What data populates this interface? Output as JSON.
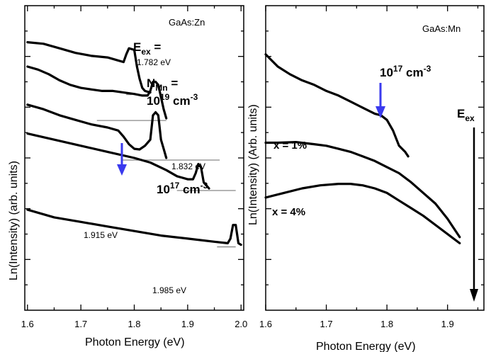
{
  "chart_data": [
    {
      "type": "line",
      "panel": "left",
      "title": "GaAs:Zn",
      "xlabel": "Photon Energy (eV)",
      "ylabel": "Ln(Intensity) (arb. units)",
      "xlim": [
        1.595,
        2.005
      ],
      "x_ticks": [
        "1.6",
        "1.7",
        "1.8",
        "1.9",
        "2.0"
      ],
      "grid": false,
      "annotations": {
        "eex_label": "E",
        "eex_sub": "ex",
        "eex_eq": " =",
        "nmn_label": "N",
        "nmn_sub": "Mn",
        "nmn_eq": " =",
        "nmn_value": "10",
        "nmn_exp": "19",
        "nmn_unit": " cm",
        "nmn_unit_exp": "-3",
        "conc_value": "10",
        "conc_exp": "17",
        "conc_unit": " cm",
        "conc_unit_exp": "-3",
        "accent_color": "#3a3aee"
      },
      "series": [
        {
          "energy_label": "1.782 eV",
          "baseline_x": [
            1.785,
            1.795
          ],
          "points": [
            [
              1.6,
              0.88
            ],
            [
              1.63,
              0.875
            ],
            [
              1.66,
              0.86
            ],
            [
              1.69,
              0.845
            ],
            [
              1.72,
              0.835
            ],
            [
              1.75,
              0.83
            ],
            [
              1.77,
              0.82
            ],
            [
              1.78,
              0.815
            ],
            [
              1.785,
              0.84
            ],
            [
              1.79,
              0.86
            ],
            [
              1.8,
              0.855
            ],
            [
              1.805,
              0.8
            ],
            [
              1.81,
              0.76
            ],
            [
              1.815,
              0.73
            ],
            [
              1.82,
              0.72
            ],
            [
              1.83,
              0.715
            ]
          ]
        },
        {
          "energy_label": "1.832 eV",
          "baseline_x": [
            1.73,
            1.86
          ],
          "points": [
            [
              1.6,
              0.8
            ],
            [
              1.62,
              0.79
            ],
            [
              1.64,
              0.775
            ],
            [
              1.66,
              0.755
            ],
            [
              1.68,
              0.74
            ],
            [
              1.7,
              0.73
            ],
            [
              1.72,
              0.725
            ],
            [
              1.74,
              0.72
            ],
            [
              1.76,
              0.72
            ],
            [
              1.78,
              0.715
            ],
            [
              1.8,
              0.71
            ],
            [
              1.815,
              0.705
            ],
            [
              1.825,
              0.705
            ],
            [
              1.83,
              0.72
            ],
            [
              1.835,
              0.75
            ],
            [
              1.84,
              0.75
            ],
            [
              1.845,
              0.74
            ],
            [
              1.85,
              0.7
            ],
            [
              1.855,
              0.66
            ],
            [
              1.86,
              0.63
            ]
          ]
        },
        {
          "energy_label": "1.915 eV",
          "baseline_x": [
            1.775,
            1.96
          ],
          "points": [
            [
              1.6,
              0.675
            ],
            [
              1.63,
              0.66
            ],
            [
              1.66,
              0.64
            ],
            [
              1.69,
              0.625
            ],
            [
              1.72,
              0.61
            ],
            [
              1.75,
              0.6
            ],
            [
              1.77,
              0.59
            ],
            [
              1.78,
              0.57
            ],
            [
              1.79,
              0.545
            ],
            [
              1.8,
              0.53
            ],
            [
              1.81,
              0.528
            ],
            [
              1.82,
              0.54
            ],
            [
              1.83,
              0.56
            ],
            [
              1.835,
              0.64
            ],
            [
              1.84,
              0.65
            ],
            [
              1.845,
              0.64
            ],
            [
              1.85,
              0.56
            ],
            [
              1.855,
              0.53
            ],
            [
              1.86,
              0.5
            ]
          ]
        },
        {
          "energy_label": "1.985 eV",
          "baseline_x": [
            1.88,
            1.99
          ],
          "points": [
            [
              1.6,
              0.58
            ],
            [
              1.65,
              0.56
            ],
            [
              1.7,
              0.54
            ],
            [
              1.75,
              0.52
            ],
            [
              1.8,
              0.5
            ],
            [
              1.83,
              0.485
            ],
            [
              1.86,
              0.46
            ],
            [
              1.88,
              0.44
            ],
            [
              1.9,
              0.43
            ],
            [
              1.91,
              0.43
            ],
            [
              1.915,
              0.45
            ],
            [
              1.92,
              0.48
            ],
            [
              1.925,
              0.47
            ],
            [
              1.93,
              0.42
            ],
            [
              1.935,
              0.41
            ],
            [
              1.94,
              0.4
            ]
          ]
        },
        {
          "energy_label": "",
          "baseline_x": [
            1.955,
            1.99
          ],
          "points": [
            [
              1.6,
              0.33
            ],
            [
              1.65,
              0.305
            ],
            [
              1.7,
              0.29
            ],
            [
              1.75,
              0.275
            ],
            [
              1.8,
              0.26
            ],
            [
              1.85,
              0.245
            ],
            [
              1.9,
              0.235
            ],
            [
              1.95,
              0.225
            ],
            [
              1.975,
              0.22
            ],
            [
              1.98,
              0.235
            ],
            [
              1.985,
              0.28
            ],
            [
              1.99,
              0.28
            ],
            [
              1.995,
              0.22
            ],
            [
              2.0,
              0.215
            ]
          ]
        }
      ]
    },
    {
      "type": "line",
      "panel": "right",
      "title": "GaAs:Mn",
      "xlabel": "Photon Energy (eV)",
      "ylabel": "Ln(Intensity) (Arb. units)",
      "xlim": [
        1.6,
        1.96
      ],
      "x_ticks": [
        "1.6",
        "1.7",
        "1.8",
        "1.9"
      ],
      "grid": false,
      "annotations": {
        "conc_value": "10",
        "conc_exp": "17",
        "conc_unit": " cm",
        "conc_unit_exp": "-3",
        "eex_label": "E",
        "eex_sub": "ex",
        "x1_label": "x = 1%",
        "x4_label": "x = 4%",
        "accent_color": "#3a3aee"
      },
      "series": [
        {
          "name": "10^17 cm^-3",
          "points": [
            [
              1.6,
              0.84
            ],
            [
              1.62,
              0.8
            ],
            [
              1.64,
              0.775
            ],
            [
              1.66,
              0.755
            ],
            [
              1.68,
              0.74
            ],
            [
              1.7,
              0.72
            ],
            [
              1.72,
              0.705
            ],
            [
              1.74,
              0.685
            ],
            [
              1.76,
              0.665
            ],
            [
              1.77,
              0.655
            ],
            [
              1.78,
              0.645
            ],
            [
              1.79,
              0.64
            ],
            [
              1.8,
              0.625
            ],
            [
              1.81,
              0.59
            ],
            [
              1.82,
              0.54
            ],
            [
              1.83,
              0.52
            ],
            [
              1.835,
              0.505
            ]
          ]
        },
        {
          "name": "x = 1%",
          "points": [
            [
              1.6,
              0.55
            ],
            [
              1.62,
              0.55
            ],
            [
              1.65,
              0.552
            ],
            [
              1.68,
              0.545
            ],
            [
              1.7,
              0.54
            ],
            [
              1.72,
              0.53
            ],
            [
              1.74,
              0.52
            ],
            [
              1.76,
              0.505
            ],
            [
              1.78,
              0.49
            ],
            [
              1.8,
              0.47
            ],
            [
              1.82,
              0.45
            ],
            [
              1.84,
              0.42
            ],
            [
              1.86,
              0.385
            ],
            [
              1.88,
              0.35
            ],
            [
              1.9,
              0.3
            ],
            [
              1.92,
              0.24
            ]
          ]
        },
        {
          "name": "x = 4%",
          "points": [
            [
              1.6,
              0.37
            ],
            [
              1.63,
              0.385
            ],
            [
              1.66,
              0.4
            ],
            [
              1.69,
              0.41
            ],
            [
              1.72,
              0.415
            ],
            [
              1.74,
              0.415
            ],
            [
              1.76,
              0.41
            ],
            [
              1.78,
              0.4
            ],
            [
              1.8,
              0.385
            ],
            [
              1.82,
              0.36
            ],
            [
              1.84,
              0.335
            ],
            [
              1.86,
              0.31
            ],
            [
              1.88,
              0.28
            ],
            [
              1.9,
              0.25
            ],
            [
              1.92,
              0.22
            ]
          ]
        }
      ]
    }
  ]
}
